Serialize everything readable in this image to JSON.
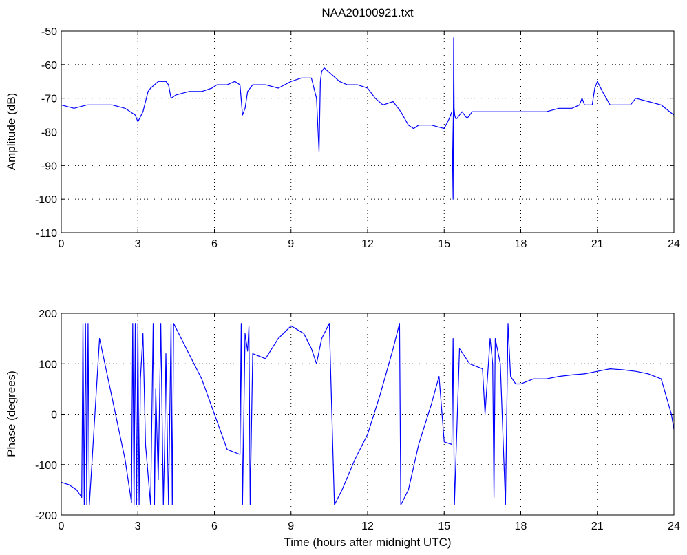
{
  "figure_title": "NAA20100921.txt",
  "chart_data": [
    {
      "type": "line",
      "title": "NAA20100921.txt",
      "xlabel": "",
      "ylabel": "Amplitude (dB)",
      "xlim": [
        0,
        24
      ],
      "ylim": [
        -110,
        -50
      ],
      "x_ticks": [
        0,
        3,
        6,
        9,
        12,
        15,
        18,
        21,
        24
      ],
      "y_ticks": [
        -110,
        -100,
        -90,
        -80,
        -70,
        -60,
        -50
      ],
      "grid": true,
      "line_color": "#0000ff",
      "series": [
        {
          "x": [
            0,
            0.5,
            1.0,
            1.5,
            2.0,
            2.5,
            2.9,
            3.0,
            3.2,
            3.4,
            3.5,
            3.8,
            4.1,
            4.2,
            4.3,
            4.5,
            5.0,
            5.5,
            5.9,
            6.1,
            6.5,
            6.8,
            7.0,
            7.1,
            7.2,
            7.3,
            7.5,
            8.0,
            8.5,
            9.0,
            9.4,
            9.8,
            10.0,
            10.1,
            10.15,
            10.2,
            10.3,
            10.6,
            10.9,
            11.2,
            11.6,
            12.0,
            12.3,
            12.6,
            13.0,
            13.3,
            13.6,
            13.8,
            14.0,
            14.5,
            15.0,
            15.2,
            15.3,
            15.35,
            15.37,
            15.39,
            15.41,
            15.45,
            15.5,
            15.7,
            15.9,
            16.1,
            16.5,
            17.0,
            17.5,
            18.0,
            18.5,
            19.0,
            19.5,
            20.0,
            20.3,
            20.4,
            20.5,
            20.8,
            20.9,
            21.0,
            21.2,
            21.5,
            22.0,
            22.3,
            22.5,
            23.0,
            23.5,
            24.0
          ],
          "y": [
            -72,
            -73,
            -72,
            -72,
            -72,
            -73,
            -75,
            -77,
            -74,
            -68,
            -67,
            -65,
            -65,
            -66,
            -70,
            -69,
            -68,
            -68,
            -67,
            -66,
            -66,
            -65,
            -66,
            -75,
            -73,
            -68,
            -66,
            -66,
            -67,
            -65,
            -64,
            -64,
            -70,
            -86,
            -65,
            -62,
            -61,
            -63,
            -65,
            -66,
            -66,
            -67,
            -70,
            -72,
            -71,
            -74,
            -78,
            -79,
            -78,
            -78,
            -79,
            -76,
            -74,
            -100,
            -52,
            -73,
            -75,
            -76,
            -76,
            -74,
            -76,
            -74,
            -74,
            -74,
            -74,
            -74,
            -74,
            -74,
            -73,
            -73,
            -72,
            -70,
            -72,
            -72,
            -67,
            -65,
            -68,
            -72,
            -72,
            -72,
            -70,
            -71,
            -72,
            -75
          ]
        }
      ]
    },
    {
      "type": "line",
      "title": "",
      "xlabel": "Time (hours after midnight UTC)",
      "ylabel": "Phase (degrees)",
      "xlim": [
        0,
        24
      ],
      "ylim": [
        -200,
        200
      ],
      "x_ticks": [
        0,
        3,
        6,
        9,
        12,
        15,
        18,
        21,
        24
      ],
      "y_ticks": [
        -200,
        -100,
        0,
        100,
        200
      ],
      "grid": true,
      "line_color": "#0000ff",
      "series": [
        {
          "x": [
            0,
            0.3,
            0.6,
            0.8,
            0.85,
            0.9,
            0.95,
            1.0,
            1.05,
            1.1,
            1.5,
            2.0,
            2.5,
            2.75,
            2.8,
            2.85,
            2.9,
            2.95,
            3.0,
            3.05,
            3.1,
            3.2,
            3.3,
            3.5,
            3.6,
            3.65,
            3.7,
            3.8,
            3.9,
            4.0,
            4.05,
            4.1,
            4.2,
            4.3,
            4.35,
            4.4,
            4.5,
            5.0,
            5.5,
            6.0,
            6.5,
            7.0,
            7.05,
            7.1,
            7.2,
            7.3,
            7.35,
            7.4,
            7.5,
            8.0,
            8.5,
            9.0,
            9.5,
            9.8,
            10.0,
            10.2,
            10.5,
            10.7,
            10.75,
            11.0,
            11.5,
            12.0,
            12.5,
            13.0,
            13.25,
            13.3,
            13.6,
            14.0,
            14.5,
            14.8,
            15.0,
            15.3,
            15.35,
            15.4,
            15.6,
            16.0,
            16.5,
            16.6,
            16.8,
            16.9,
            16.95,
            17.0,
            17.2,
            17.4,
            17.5,
            17.6,
            17.8,
            18.0,
            18.5,
            19.0,
            19.5,
            20.0,
            20.5,
            21.0,
            21.5,
            22.0,
            22.5,
            23.0,
            23.5,
            23.9,
            24.0
          ],
          "y": [
            -135,
            -140,
            -150,
            -165,
            180,
            -180,
            180,
            -180,
            180,
            -180,
            150,
            30,
            -90,
            -175,
            180,
            -180,
            180,
            -180,
            180,
            -180,
            70,
            160,
            -60,
            -180,
            180,
            -180,
            50,
            -130,
            180,
            -180,
            -60,
            120,
            -180,
            180,
            -180,
            180,
            170,
            120,
            70,
            0,
            -70,
            -80,
            180,
            -180,
            160,
            125,
            175,
            -180,
            120,
            110,
            150,
            175,
            160,
            130,
            100,
            150,
            180,
            -180,
            -175,
            -150,
            -90,
            -40,
            40,
            130,
            180,
            -180,
            -150,
            -60,
            20,
            75,
            -55,
            -60,
            150,
            -180,
            130,
            100,
            90,
            0,
            150,
            100,
            -165,
            150,
            100,
            -180,
            180,
            75,
            60,
            60,
            70,
            70,
            75,
            78,
            80,
            85,
            90,
            88,
            85,
            80,
            70,
            0,
            -30
          ]
        }
      ]
    }
  ]
}
